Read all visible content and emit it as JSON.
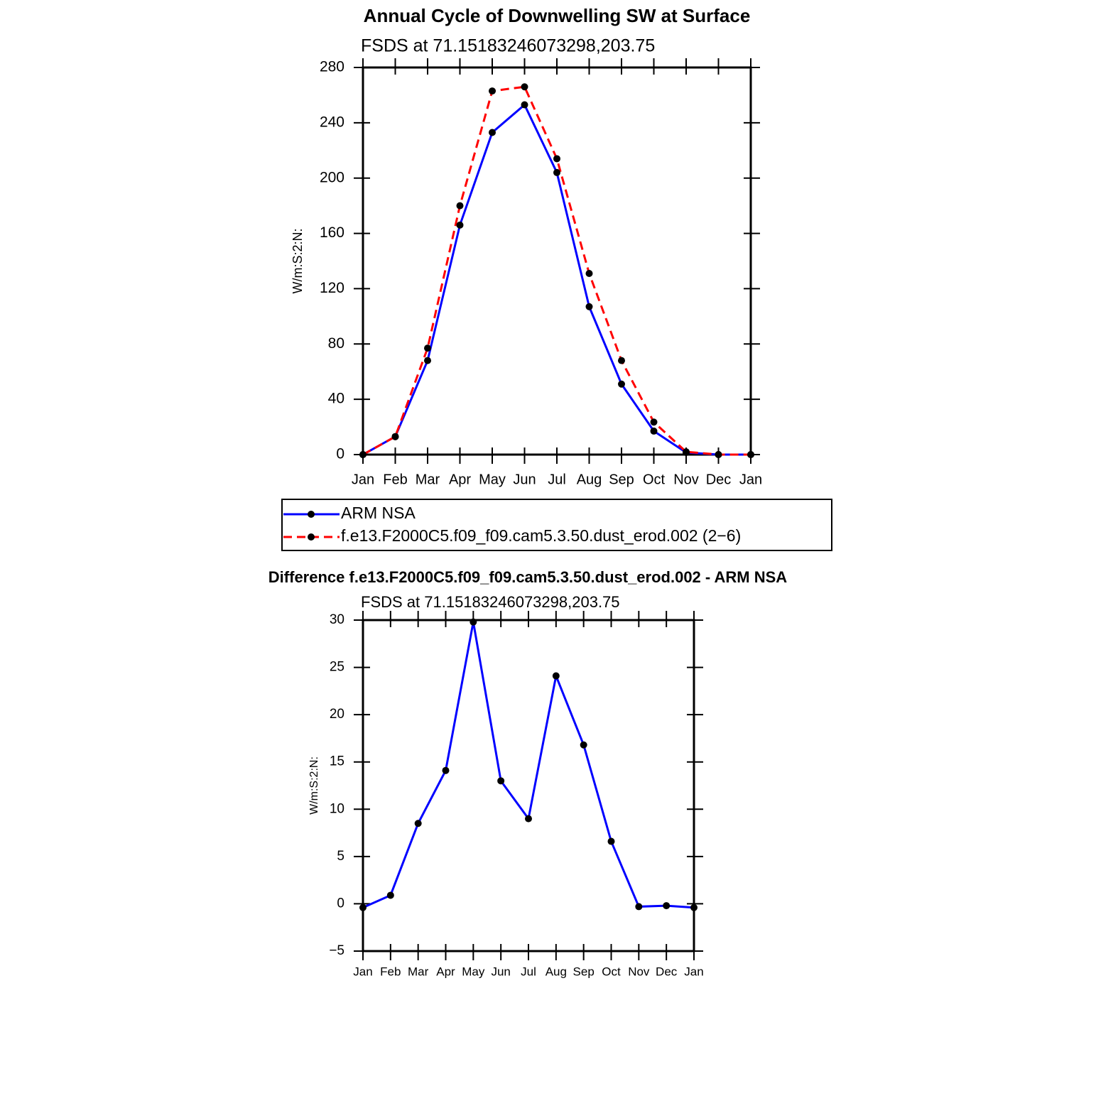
{
  "chart_data": [
    {
      "type": "line",
      "title": "Annual Cycle of Downwelling SW at Surface",
      "subtitle": "FSDS at 71.15183246073298,203.75",
      "y_label": "W/m:S:2:N:",
      "categories": [
        "Jan",
        "Feb",
        "Mar",
        "Apr",
        "May",
        "Jun",
        "Jul",
        "Aug",
        "Sep",
        "Oct",
        "Nov",
        "Dec",
        "Jan"
      ],
      "series": [
        {
          "name": "ARM NSA",
          "color": "#0000ff",
          "line_style": "solid",
          "values": [
            0,
            13,
            68,
            166,
            233,
            253,
            204,
            107,
            51,
            17,
            1.5,
            0,
            0
          ]
        },
        {
          "name": "f.e13.F2000C5.f09_f09.cam5.3.50.dust_erod.002 (2−6)",
          "color": "#ff0000",
          "line_style": "dashed",
          "values": [
            0,
            13,
            77,
            180,
            263,
            266,
            214,
            131,
            68,
            23.5,
            2,
            0,
            0
          ]
        }
      ],
      "ylim": [
        0,
        280
      ],
      "yticks": [
        0,
        40,
        80,
        120,
        160,
        200,
        240,
        280
      ],
      "legend": "bottom"
    },
    {
      "type": "line",
      "title": "Difference f.e13.F2000C5.f09_f09.cam5.3.50.dust_erod.002 - ARM NSA",
      "subtitle": "FSDS at 71.15183246073298,203.75",
      "y_label": "W/m:S:2:N:",
      "categories": [
        "Jan",
        "Feb",
        "Mar",
        "Apr",
        "May",
        "Jun",
        "Jul",
        "Aug",
        "Sep",
        "Oct",
        "Nov",
        "Dec",
        "Jan"
      ],
      "values": [
        -0.4,
        0.9,
        8.5,
        14.1,
        29.8,
        13,
        9,
        24.1,
        16.8,
        6.6,
        -0.3,
        -0.2,
        -0.4
      ],
      "color": "#0000ff",
      "line_style": "solid",
      "ylim": [
        -5,
        30
      ],
      "yticks": [
        {
          "value": -5,
          "label": "−5"
        },
        0,
        5,
        10,
        15,
        20,
        25,
        30
      ]
    }
  ]
}
